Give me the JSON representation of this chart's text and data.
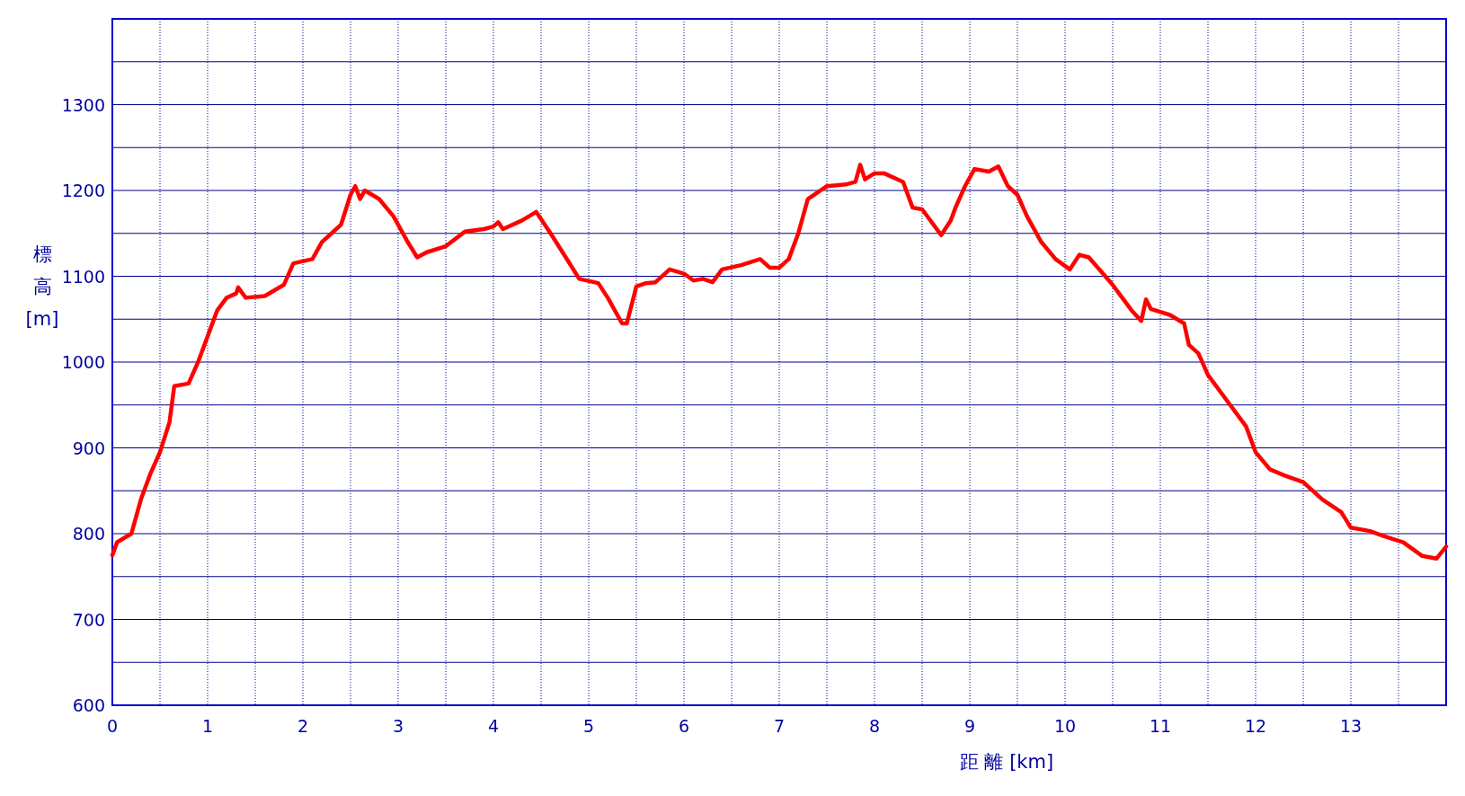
{
  "chart_data": {
    "type": "line",
    "xlabel": "距 離 [km]",
    "ylabel": "標高 [m]",
    "xlim": [
      0,
      14
    ],
    "ylim": [
      600,
      1400
    ],
    "xticks": [
      0,
      {
        "value": 0.5,
        "label": null
      },
      1,
      {
        "value": 1.5,
        "label": null
      },
      2,
      {
        "value": 2.5,
        "label": null
      },
      3,
      {
        "value": 3.5,
        "label": null
      },
      4,
      {
        "value": 4.5,
        "label": null
      },
      5,
      {
        "value": 5.5,
        "label": null
      },
      6,
      {
        "value": 6.5,
        "label": null
      },
      7,
      {
        "value": 7.5,
        "label": null
      },
      8,
      {
        "value": 8.5,
        "label": null
      },
      9,
      {
        "value": 9.5,
        "label": null
      },
      10,
      {
        "value": 10.5,
        "label": null
      },
      11,
      {
        "value": 11.5,
        "label": null
      },
      12,
      {
        "value": 12.5,
        "label": null
      },
      13,
      {
        "value": 13.5,
        "label": null
      }
    ],
    "yticks": [
      600,
      {
        "value": 650,
        "label": null
      },
      700,
      {
        "value": 750,
        "label": null
      },
      800,
      {
        "value": 850,
        "label": null
      },
      900,
      {
        "value": 950,
        "label": null
      },
      1000,
      {
        "value": 1050,
        "label": null
      },
      1100,
      {
        "value": 1150,
        "label": null
      },
      1200,
      {
        "value": 1250,
        "label": null
      },
      1300,
      {
        "value": 1350,
        "label": null
      }
    ],
    "grid": true,
    "marker": "none",
    "line_style": "solid",
    "series": [
      {
        "color": "#ff0000",
        "x": [
          0,
          0.05,
          0.2,
          0.3,
          0.4,
          0.5,
          0.6,
          0.65,
          0.8,
          0.9,
          1.0,
          1.1,
          1.2,
          1.3,
          1.32,
          1.4,
          1.6,
          1.8,
          1.9,
          2.1,
          2.2,
          2.4,
          2.5,
          2.55,
          2.6,
          2.65,
          2.8,
          2.95,
          3.1,
          3.2,
          3.3,
          3.5,
          3.7,
          3.9,
          4.0,
          4.05,
          4.1,
          4.3,
          4.45,
          4.6,
          4.8,
          4.9,
          5.1,
          5.2,
          5.35,
          5.4,
          5.5,
          5.6,
          5.7,
          5.85,
          6.0,
          6.1,
          6.2,
          6.3,
          6.4,
          6.6,
          6.8,
          6.9,
          7.0,
          7.1,
          7.2,
          7.3,
          7.5,
          7.7,
          7.8,
          7.85,
          7.9,
          8.0,
          8.1,
          8.3,
          8.4,
          8.5,
          8.7,
          8.8,
          8.85,
          8.95,
          9.05,
          9.2,
          9.3,
          9.4,
          9.5,
          9.6,
          9.75,
          9.9,
          10.05,
          10.15,
          10.25,
          10.5,
          10.7,
          10.8,
          10.85,
          10.9,
          11.1,
          11.25,
          11.3,
          11.4,
          11.5,
          11.7,
          11.9,
          12.0,
          12.15,
          12.3,
          12.5,
          12.7,
          12.9,
          13.0,
          13.2,
          13.35,
          13.55,
          13.75,
          13.9,
          14.0
        ],
        "values": [
          775,
          790,
          800,
          840,
          870,
          895,
          930,
          972,
          975,
          1000,
          1030,
          1060,
          1075,
          1080,
          1087,
          1075,
          1077,
          1090,
          1115,
          1120,
          1140,
          1160,
          1195,
          1205,
          1190,
          1200,
          1190,
          1170,
          1140,
          1122,
          1128,
          1135,
          1152,
          1155,
          1158,
          1163,
          1155,
          1165,
          1175,
          1150,
          1115,
          1097,
          1092,
          1075,
          1045,
          1045,
          1088,
          1092,
          1093,
          1108,
          1103,
          1095,
          1097,
          1093,
          1108,
          1113,
          1120,
          1110,
          1110,
          1120,
          1150,
          1190,
          1205,
          1207,
          1210,
          1230,
          1213,
          1220,
          1220,
          1210,
          1180,
          1178,
          1148,
          1165,
          1180,
          1205,
          1225,
          1222,
          1228,
          1205,
          1195,
          1170,
          1140,
          1120,
          1108,
          1125,
          1122,
          1090,
          1060,
          1048,
          1073,
          1062,
          1055,
          1045,
          1020,
          1010,
          985,
          955,
          925,
          895,
          875,
          868,
          860,
          840,
          825,
          807,
          803,
          797,
          790,
          774,
          771,
          785
        ]
      }
    ]
  }
}
